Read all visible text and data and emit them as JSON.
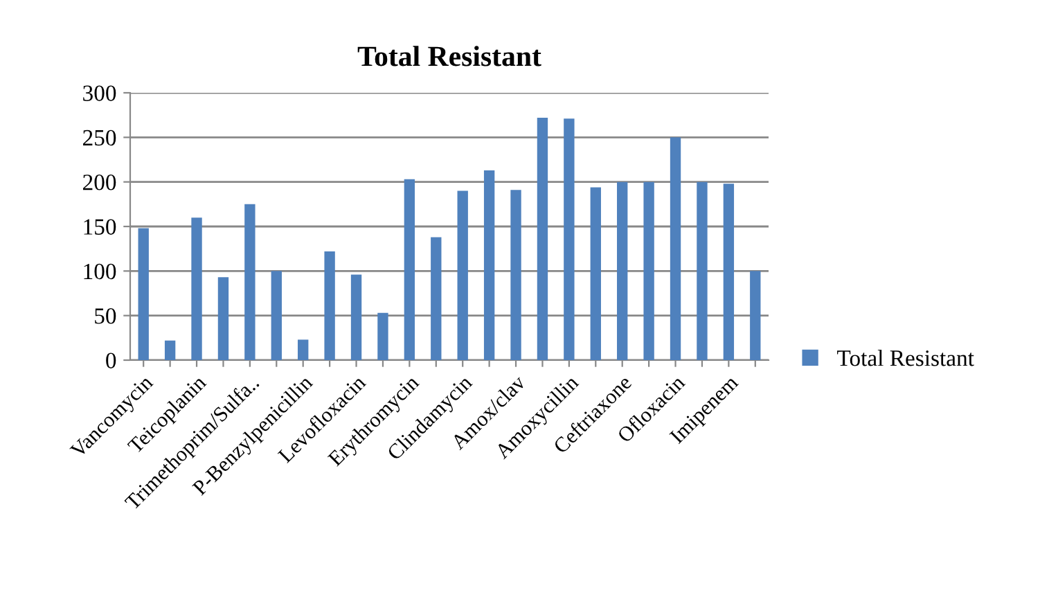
{
  "chart_data": {
    "type": "bar",
    "title": "Total Resistant",
    "categories": [
      "Vancomycin",
      null,
      "Teicoplanin",
      null,
      "Trimethoprim/Sulfa..",
      null,
      "P-Benzylpenicillin",
      null,
      "Levofloxacin",
      null,
      "Erythromycin",
      null,
      "Clindamycin",
      null,
      "Amox/clav",
      null,
      "Amoxycillin",
      null,
      "Ceftriaxone",
      null,
      "Ofloxacin",
      null,
      "Imipenem",
      null
    ],
    "series": [
      {
        "name": "Total Resistant",
        "color": "#4f81bd",
        "values": [
          148,
          22,
          160,
          93,
          175,
          100,
          23,
          122,
          96,
          53,
          203,
          138,
          190,
          213,
          191,
          272,
          271,
          194,
          200,
          200,
          250,
          200,
          198,
          100
        ]
      }
    ],
    "ylim": [
      0,
      300
    ],
    "yticks": [
      0,
      50,
      100,
      150,
      200,
      250,
      300
    ],
    "grid": "y",
    "legend": "right"
  }
}
